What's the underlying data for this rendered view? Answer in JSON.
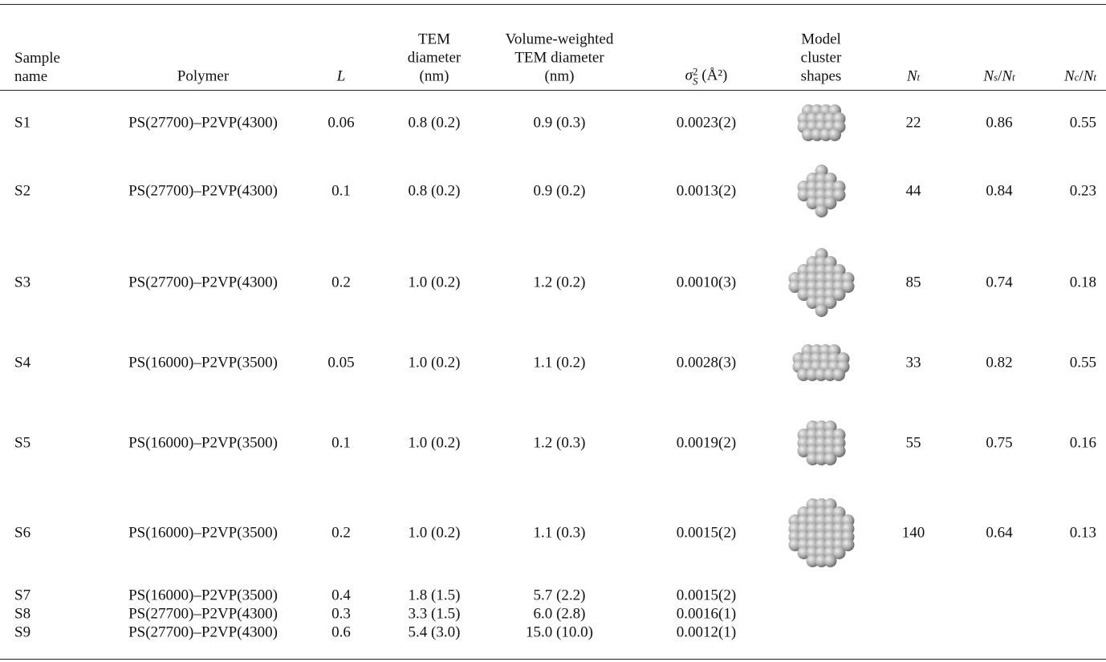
{
  "table": {
    "columns": {
      "name": {
        "lines": [
          "Sample",
          "name"
        ]
      },
      "polymer": {
        "lines": [
          "Polymer"
        ]
      },
      "L": {
        "symbol": "L"
      },
      "tem": {
        "lines": [
          "TEM",
          "diameter",
          "(nm)"
        ]
      },
      "vw": {
        "lines": [
          "Volume-weighted",
          "TEM diameter",
          "(nm)"
        ]
      },
      "sigma": {
        "symbol": "σ",
        "sub": "S",
        "sup": "2",
        "unit": "(Å²)"
      },
      "shapes": {
        "lines": [
          "Model",
          "cluster",
          "shapes"
        ]
      },
      "nt": {
        "symbol": "N",
        "sub": "t"
      },
      "ns": {
        "num": {
          "symbol": "N",
          "sub": "s"
        },
        "den": {
          "symbol": "N",
          "sub": "t"
        }
      },
      "nc": {
        "num": {
          "symbol": "N",
          "sub": "c"
        },
        "den": {
          "symbol": "N",
          "sub": "t"
        }
      }
    },
    "rows": [
      {
        "name": "S1",
        "polymer": "PS(27700)–P2VP(4300)",
        "L": 0.06,
        "tem": "0.8 (0.2)",
        "vw": "0.9 (0.3)",
        "sigma": "0.0023(2)",
        "nt": 22,
        "ns": 0.86,
        "nc": 0.55
      },
      {
        "name": "S2",
        "polymer": "PS(27700)–P2VP(4300)",
        "L": 0.1,
        "tem": "0.8 (0.2)",
        "vw": "0.9 (0.2)",
        "sigma": "0.0013(2)",
        "nt": 44,
        "ns": 0.84,
        "nc": 0.23
      },
      {
        "name": "S3",
        "polymer": "PS(27700)–P2VP(4300)",
        "L": 0.2,
        "tem": "1.0 (0.2)",
        "vw": "1.2 (0.2)",
        "sigma": "0.0010(3)",
        "nt": 85,
        "ns": 0.74,
        "nc": 0.18
      },
      {
        "name": "S4",
        "polymer": "PS(16000)–P2VP(3500)",
        "L": 0.05,
        "tem": "1.0 (0.2)",
        "vw": "1.1 (0.2)",
        "sigma": "0.0028(3)",
        "nt": 33,
        "ns": 0.82,
        "nc": 0.55
      },
      {
        "name": "S5",
        "polymer": "PS(16000)–P2VP(3500)",
        "L": 0.1,
        "tem": "1.0 (0.2)",
        "vw": "1.2 (0.3)",
        "sigma": "0.0019(2)",
        "nt": 55,
        "ns": 0.75,
        "nc": 0.16
      },
      {
        "name": "S6",
        "polymer": "PS(16000)–P2VP(3500)",
        "L": 0.2,
        "tem": "1.0 (0.2)",
        "vw": "1.1 (0.3)",
        "sigma": "0.0015(2)",
        "nt": 140,
        "ns": 0.64,
        "nc": 0.13
      },
      {
        "name": "S7",
        "polymer": "PS(16000)–P2VP(3500)",
        "L": 0.4,
        "tem": "1.8 (1.5)",
        "vw": "5.7 (2.2)",
        "sigma": "0.0015(2)"
      },
      {
        "name": "S8",
        "polymer": "PS(27700)–P2VP(4300)",
        "L": 0.3,
        "tem": "3.3 (1.5)",
        "vw": "6.0 (2.8)",
        "sigma": "0.0016(1)"
      },
      {
        "name": "S9",
        "polymer": "PS(27700)–P2VP(4300)",
        "L": 0.6,
        "tem": "5.4 (3.0)",
        "vw": "15.0 (10.0)",
        "sigma": "0.0012(1)"
      }
    ]
  }
}
